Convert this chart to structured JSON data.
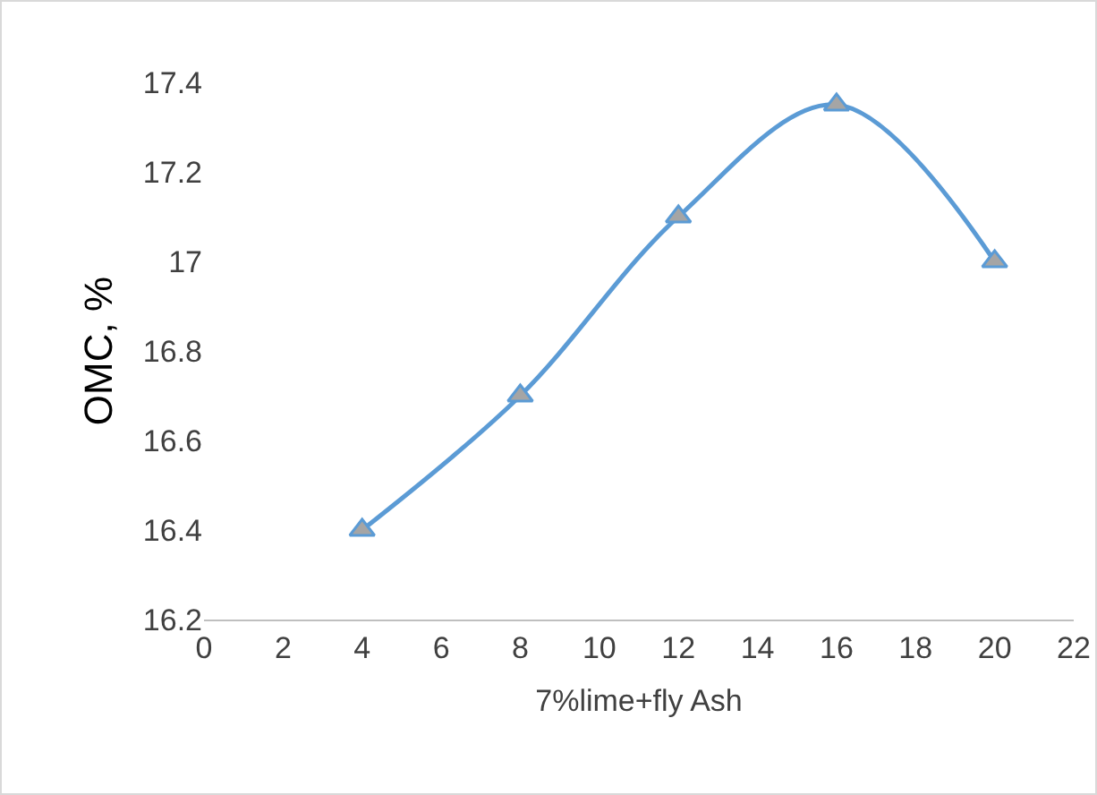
{
  "chart_data": {
    "type": "line",
    "xlabel": "7%lime+fly Ash",
    "ylabel": "OMC, %",
    "x": [
      4,
      8,
      12,
      16,
      20
    ],
    "series": [
      {
        "color": "#5b9bd5",
        "values": [
          16.4,
          16.7,
          17.1,
          17.35,
          17.0
        ]
      }
    ],
    "xlim": [
      0,
      22
    ],
    "xticks": [
      0,
      2,
      4,
      6,
      8,
      10,
      12,
      14,
      16,
      18,
      20,
      22
    ],
    "ylim": [
      16.2,
      17.4
    ],
    "yticks": [
      16.2,
      16.4,
      16.6,
      16.8,
      17,
      17.2,
      17.4
    ],
    "grid": false,
    "marker": "triangle",
    "line_style": "solid"
  }
}
